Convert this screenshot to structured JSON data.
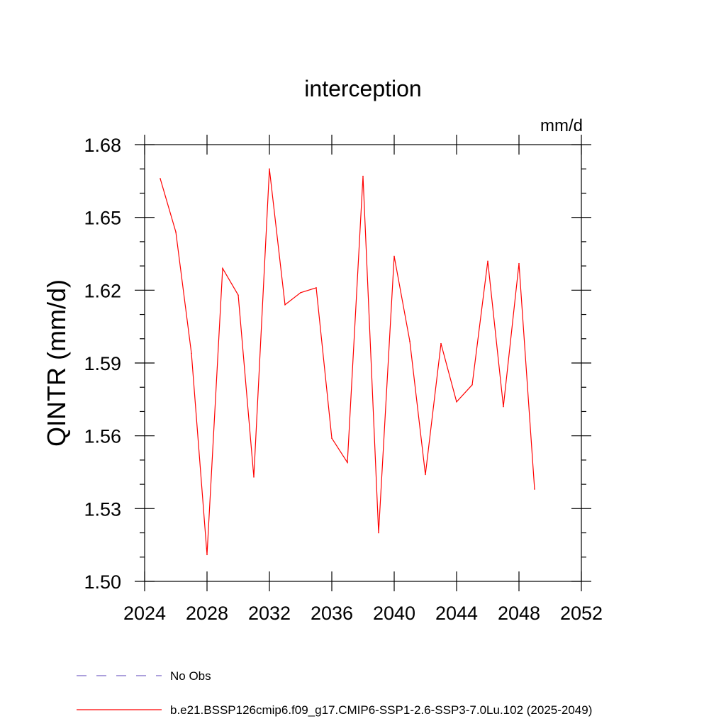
{
  "chart_data": {
    "type": "line",
    "title": "interception",
    "units_label": "mm/d",
    "xlabel": "",
    "ylabel": "QINTR  (mm/d)",
    "xlim": [
      2024,
      2052
    ],
    "ylim": [
      1.5,
      1.68
    ],
    "x_ticks": [
      2024,
      2028,
      2032,
      2036,
      2040,
      2044,
      2048,
      2052
    ],
    "y_ticks": [
      1.5,
      1.53,
      1.56,
      1.59,
      1.62,
      1.65,
      1.68
    ],
    "y_tick_labels": [
      "1.50",
      "1.53",
      "1.56",
      "1.59",
      "1.62",
      "1.65",
      "1.68"
    ],
    "grid": false,
    "legend_position": "bottom-left",
    "series": [
      {
        "name": "b.e21.BSSP126cmip6.f09_g17.CMIP6-SSP1-2.6-SSP3-7.0Lu.102 (2025-2049)",
        "color": "#ff0000",
        "line_style": "solid",
        "x": [
          2025,
          2026,
          2027,
          2028,
          2029,
          2030,
          2031,
          2032,
          2033,
          2034,
          2035,
          2036,
          2037,
          2038,
          2039,
          2040,
          2041,
          2042,
          2043,
          2044,
          2045,
          2046,
          2047,
          2048,
          2049
        ],
        "values": [
          1.666,
          1.644,
          1.594,
          1.511,
          1.629,
          1.618,
          1.543,
          1.67,
          1.614,
          1.619,
          1.621,
          1.559,
          1.549,
          1.667,
          1.52,
          1.634,
          1.599,
          1.544,
          1.598,
          1.574,
          1.581,
          1.632,
          1.572,
          1.631,
          1.538
        ]
      }
    ],
    "legend": [
      {
        "label": "No Obs",
        "color": "#7b68c8",
        "line_style": "dashed"
      },
      {
        "label": "b.e21.BSSP126cmip6.f09_g17.CMIP6-SSP1-2.6-SSP3-7.0Lu.102 (2025-2049)",
        "color": "#ff0000",
        "line_style": "solid"
      }
    ]
  }
}
